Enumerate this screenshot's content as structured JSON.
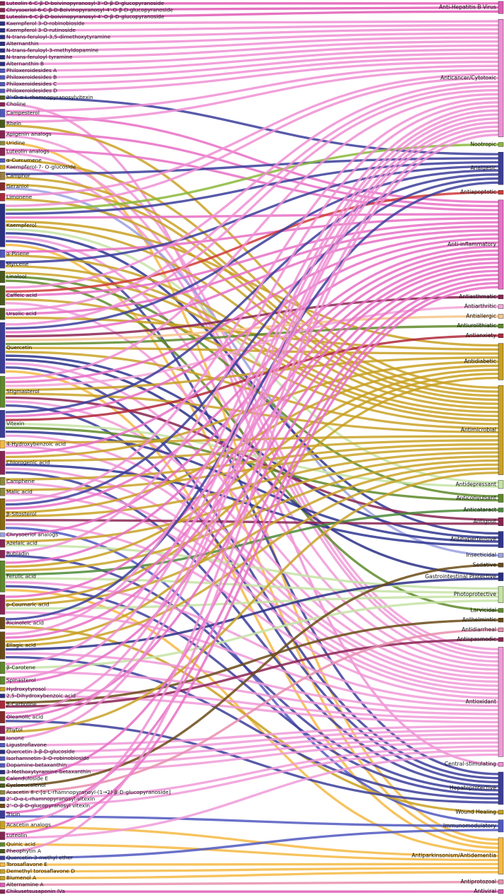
{
  "diagram": {
    "type": "sankey",
    "targets": [
      {
        "label": "Anti-Hepatitis B Virus",
        "color": "#e05bb5"
      },
      {
        "label": "Anticancer/Cytotoxic",
        "color": "#ee8fd4"
      },
      {
        "label": "Nootropic",
        "color": "#8bb83a"
      },
      {
        "label": "Analgesic",
        "color": "#3b3d9a"
      },
      {
        "label": "Antiapoptotic",
        "color": "#d03a3a"
      },
      {
        "label": "Anti-inflammatory",
        "color": "#e86fc6"
      },
      {
        "label": "Antiasthmatic",
        "color": "#8a2452"
      },
      {
        "label": "Antiarthritic",
        "color": "#f2a6d8"
      },
      {
        "label": "Antiallergic",
        "color": "#f6c48a"
      },
      {
        "label": "Antiurolithiatic",
        "color": "#5f8a2a"
      },
      {
        "label": "Antianxiety",
        "color": "#b0283a"
      },
      {
        "label": "Antidiabetic",
        "color": "#c8a021"
      },
      {
        "label": "Antimicrobial",
        "color": "#c9a227"
      },
      {
        "label": "Antidepressant",
        "color": "#c6e3a4"
      },
      {
        "label": "Anticonvulsant",
        "color": "#5f8a2a"
      },
      {
        "label": "Anticataract",
        "color": "#4c8a3a"
      },
      {
        "label": "Antigout",
        "color": "#8a2452"
      },
      {
        "label": "Antihypertensive",
        "color": "#2e3590"
      },
      {
        "label": "Insecticidal",
        "color": "#9aa0e0"
      },
      {
        "label": "Sedative",
        "color": "#6b4b16"
      },
      {
        "label": "Gastrointestinal Protective",
        "color": "#2a2f86"
      },
      {
        "label": "Photoprotective",
        "color": "#c6e3a4"
      },
      {
        "label": "Larvicidal",
        "color": "#5f8a2a"
      },
      {
        "label": "Anthelmintic",
        "color": "#6b4b16"
      },
      {
        "label": "Antidiarrheal",
        "color": "#e88fae"
      },
      {
        "label": "Antispasmodic",
        "color": "#8a2452"
      },
      {
        "label": "Antioxidant",
        "color": "#f09ad8"
      },
      {
        "label": "Central-stimulating",
        "color": "#ee8fd4"
      },
      {
        "label": "Hepatoprotective",
        "color": "#3b3d9a"
      },
      {
        "label": "Wound Healing",
        "color": "#c8a021"
      },
      {
        "label": "Immunomodulatory",
        "color": "#5058c0"
      },
      {
        "label": "Antiparkinsonism/Antidementia",
        "color": "#f4b942"
      },
      {
        "label": "Antiprotozoal",
        "color": "#e88fae"
      },
      {
        "label": "Antiviral",
        "color": "#e05bb5"
      }
    ],
    "sources": [
      {
        "label": "Luteolin 6-C-β-D-boivinopyranosyl-3′-O-β-D-glucopyranoside",
        "color": "#8a2452",
        "targets": [
          0
        ]
      },
      {
        "label": "Chrysoeriol-6-C-β-D-Boivinopyranosyl-4′-O-β-D-glucopyranoside",
        "color": "#8a2452",
        "targets": [
          0
        ]
      },
      {
        "label": "Luteolin-6-C-β-D-boivinopyranosyl-4′-O-β-D-glucopyranoside",
        "color": "#8a2452",
        "targets": [
          0
        ]
      },
      {
        "label": "Kaempferol 3-O-robinobioside",
        "color": "#2a2f86",
        "targets": [
          1
        ]
      },
      {
        "label": "Kaempferol 3-O-rutinoside",
        "color": "#2a2f86",
        "targets": [
          1
        ]
      },
      {
        "label": "N-trans-feruloyl-3,5-dimethoxytyramine",
        "color": "#2a2f86",
        "targets": [
          1
        ]
      },
      {
        "label": "Alternanthin",
        "color": "#2a2f86",
        "targets": [
          1
        ]
      },
      {
        "label": "N-trans-feruloyl-3-methyldopamine",
        "color": "#2a2f86",
        "targets": [
          1
        ]
      },
      {
        "label": "N-trans-feruloyl tyramine",
        "color": "#2a2f86",
        "targets": [
          1
        ]
      },
      {
        "label": "Alternanthin B",
        "color": "#2a2f86",
        "targets": [
          1
        ]
      },
      {
        "label": "Philoxeroidesides A",
        "color": "#5058c0",
        "targets": [
          1
        ]
      },
      {
        "label": "Philoxeroidesides B",
        "color": "#5058c0",
        "targets": [
          1
        ]
      },
      {
        "label": "Philoxeroidesides C",
        "color": "#5058c0",
        "targets": [
          1
        ]
      },
      {
        "label": "Philoxeroidesides D",
        "color": "#5058c0",
        "targets": [
          1
        ]
      },
      {
        "label": "2″-O-α-L-rhamnopyranosylvitexin",
        "color": "#4a5a1a",
        "targets": [
          3
        ]
      },
      {
        "label": "Choline",
        "color": "#8a2452",
        "targets": [
          27
        ]
      },
      {
        "label": "Campesterol",
        "color": "#5058c0",
        "targets": [
          1,
          5
        ]
      },
      {
        "label": "Rhein",
        "color": "#4a5a1a",
        "targets": [
          12,
          1
        ]
      },
      {
        "label": "Apigenin analogs",
        "color": "#8a2452",
        "targets": [
          5,
          26
        ]
      },
      {
        "label": "Uridine",
        "color": "#8a8a3a",
        "targets": [
          31
        ]
      },
      {
        "label": "Luteolin analogs",
        "color": "#8a2452",
        "targets": [
          5,
          26
        ]
      },
      {
        "label": "α-Curcumene",
        "color": "#5058c0",
        "targets": [
          12
        ]
      },
      {
        "label": "Kaempferol-7- O-glucoside",
        "color": "#c8a021",
        "targets": [
          26
        ]
      },
      {
        "label": "Camphor",
        "color": "#a08040",
        "targets": [
          12,
          3
        ]
      },
      {
        "label": "Geraniol",
        "color": "#8a2a2a",
        "targets": [
          12,
          18
        ]
      },
      {
        "label": "Limonene",
        "color": "#b0283a",
        "targets": [
          1,
          12
        ]
      },
      {
        "label": "Kaempferol",
        "color": "#2a2f86",
        "targets": [
          1,
          2,
          3,
          5,
          11,
          12,
          13,
          17,
          26,
          28,
          31
        ]
      },
      {
        "label": "α-Pinene",
        "color": "#5058c0",
        "targets": [
          12,
          5
        ]
      },
      {
        "label": "Myrcene",
        "color": "#3b3d9a",
        "targets": [
          3,
          12
        ]
      },
      {
        "label": "Linalool",
        "color": "#4a5a1a",
        "targets": [
          12,
          14,
          22
        ]
      },
      {
        "label": "Caffeic acid",
        "color": "#4a5a1a",
        "targets": [
          1,
          4,
          5,
          12,
          26
        ]
      },
      {
        "label": "Ursolic acid",
        "color": "#4a5a1a",
        "targets": [
          1,
          5,
          11
        ]
      },
      {
        "label": "Quercetin",
        "color": "#3b3d9a",
        "targets": [
          1,
          3,
          5,
          6,
          8,
          9,
          11,
          12,
          17,
          20,
          26,
          28,
          31
        ]
      },
      {
        "label": "Stigmasterol",
        "color": "#5f8a2a",
        "targets": [
          1,
          5,
          7,
          11,
          12,
          16,
          26,
          28
        ]
      },
      {
        "label": "Vitexin",
        "color": "#3b3d9a",
        "targets": [
          3,
          5,
          10,
          13,
          14,
          17,
          26
        ]
      },
      {
        "label": "4-Hydroxybenzoic acid",
        "color": "#f4b942",
        "targets": [
          12,
          26
        ]
      },
      {
        "label": "Chlorogenic acid",
        "color": "#8a2452",
        "targets": [
          5,
          11,
          12,
          17,
          26,
          28
        ]
      },
      {
        "label": "Camphene",
        "color": "#8a8a3a",
        "targets": [
          12,
          26
        ]
      },
      {
        "label": "Malic acid",
        "color": "#8a8a3a",
        "targets": [
          12,
          26
        ]
      },
      {
        "label": "β-Sitosterol",
        "color": "#8a6a10",
        "targets": [
          1,
          3,
          5,
          11,
          12,
          16,
          26,
          30
        ]
      },
      {
        "label": "Chrysoeriol analogs",
        "color": "#9aa0e0",
        "targets": [
          5
        ]
      },
      {
        "label": "Azelaic acid",
        "color": "#8a2452",
        "targets": [
          12,
          21
        ]
      },
      {
        "label": "Rubiadin",
        "color": "#8a2452",
        "targets": [
          1,
          28
        ]
      },
      {
        "label": "Ferulic acid",
        "color": "#5f8a2a",
        "targets": [
          5,
          11,
          12,
          15,
          21,
          26,
          28,
          31
        ]
      },
      {
        "label": "p-Coumaric acid",
        "color": "#8a2452",
        "targets": [
          5,
          11,
          12,
          21,
          26
        ]
      },
      {
        "label": "Ricinoleic acid",
        "color": "#6b4b16",
        "targets": [
          3,
          5,
          29
        ]
      },
      {
        "label": "Ellagic acid",
        "color": "#6b4b16",
        "targets": [
          1,
          5,
          11,
          12,
          20,
          26,
          28
        ]
      },
      {
        "label": "β-Carotene",
        "color": "#5f8a2a",
        "targets": [
          1,
          21,
          26
        ]
      },
      {
        "label": "Spinasterol",
        "color": "#5f8a2a",
        "targets": [
          1,
          5
        ]
      },
      {
        "label": "Hydroxytyrosol",
        "color": "#c8a021",
        "targets": [
          26
        ]
      },
      {
        "label": "2,5-Dihydroxybenzoic acid",
        "color": "#2a2f86",
        "targets": [
          26
        ]
      },
      {
        "label": "β-Carboline",
        "color": "#b0283a",
        "targets": [
          23,
          25
        ]
      },
      {
        "label": "Oleanolic acid",
        "color": "#8a2a2a",
        "targets": [
          1,
          5,
          28
        ]
      },
      {
        "label": "Phytol",
        "color": "#8a2452",
        "targets": [
          1,
          12
        ]
      },
      {
        "label": "Ionone",
        "color": "#8a2452",
        "targets": [
          1
        ]
      },
      {
        "label": "Ligustroflavone",
        "color": "#5058c0",
        "targets": [
          26
        ]
      },
      {
        "label": "Quercetin 3-β-D-glucoside",
        "color": "#2a2f86",
        "targets": [
          26
        ]
      },
      {
        "label": "Isorhamnetin-3-O-robinobioside",
        "color": "#5058c0",
        "targets": [
          26
        ]
      },
      {
        "label": "Dopamine-betaxanthin",
        "color": "#5058c0",
        "targets": [
          26
        ]
      },
      {
        "label": "3-Methoxytyramine-betaxanthin",
        "color": "#2a2f86",
        "targets": [
          26
        ]
      },
      {
        "label": "Calenduloside E",
        "color": "#5f8a2a",
        "targets": [
          5
        ]
      },
      {
        "label": "Cycloeucalenol",
        "color": "#4a5a1a",
        "targets": [
          19
        ]
      },
      {
        "label": "Acacetin 8-c-[α-L-rhamnopyranoyl-(1→2)-β-D-glucopyranoside]",
        "color": "#8a8a3a",
        "targets": [
          24
        ]
      },
      {
        "label": "2″-O-α-L-rhamnopyranosyl-vitexin",
        "color": "#3b3d9a",
        "targets": [
          26
        ]
      },
      {
        "label": "2″-O-β-D-glucopyranosyl vitexin",
        "color": "#6b4b16",
        "targets": [
          26
        ]
      },
      {
        "label": "Tricin",
        "color": "#3b3d9a",
        "targets": [
          5,
          30
        ]
      },
      {
        "label": "Acacetin analogs",
        "color": "#c8a021",
        "targets": [
          1,
          31
        ]
      },
      {
        "label": "Luteolin",
        "color": "#8a2452",
        "targets": [
          5,
          26
        ]
      },
      {
        "label": "Quinic acid",
        "color": "#5f8a2a",
        "targets": [
          31
        ]
      },
      {
        "label": "Pheophytin A",
        "color": "#4a5a1a",
        "targets": [
          1
        ]
      },
      {
        "label": "Quercetin-3-methyl ether",
        "color": "#3b3d9a",
        "targets": [
          30
        ]
      },
      {
        "label": "Torosaflavone E",
        "color": "#f4b942",
        "targets": [
          31
        ]
      },
      {
        "label": "Demethyl torosaflavone D",
        "color": "#c8a021",
        "targets": [
          31
        ]
      },
      {
        "label": "Blumenol A",
        "color": "#c8a021",
        "targets": [
          31
        ]
      },
      {
        "label": "Alternamine A",
        "color": "#e05bb5",
        "targets": [
          32
        ]
      },
      {
        "label": "Chikusetsusaponin IVa",
        "color": "#8a2452",
        "targets": [
          33
        ]
      }
    ]
  }
}
